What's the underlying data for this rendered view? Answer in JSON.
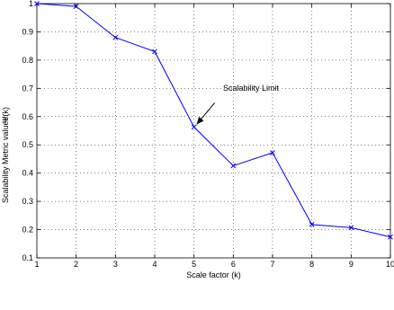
{
  "chart_data": {
    "type": "line",
    "x": [
      1,
      2,
      3,
      4,
      5,
      6,
      7,
      8,
      9,
      10
    ],
    "series": [
      {
        "values": [
          1.0,
          0.99,
          0.88,
          0.83,
          0.563,
          0.426,
          0.472,
          0.218,
          0.207,
          0.174
        ],
        "color": "#0000ff",
        "marker": "x"
      }
    ],
    "xlabel": "Scale factor (k)",
    "ylabel_main": "Scalability Metric values:",
    "ylabel_symbol": "Ψ(k)",
    "xlim": [
      1,
      10
    ],
    "ylim": [
      0.1,
      1.0
    ],
    "xticks": [
      "1",
      "2",
      "3",
      "4",
      "5",
      "6",
      "7",
      "8",
      "9",
      "10"
    ],
    "yticks": [
      "0.1",
      "0.2",
      "0.3",
      "0.4",
      "0.5",
      "0.6",
      "0.7",
      "0.8",
      "0.9",
      "1"
    ],
    "grid": true,
    "annotations": [
      {
        "text": "Scalability Limit",
        "x": 5,
        "y": 0.563
      }
    ]
  }
}
